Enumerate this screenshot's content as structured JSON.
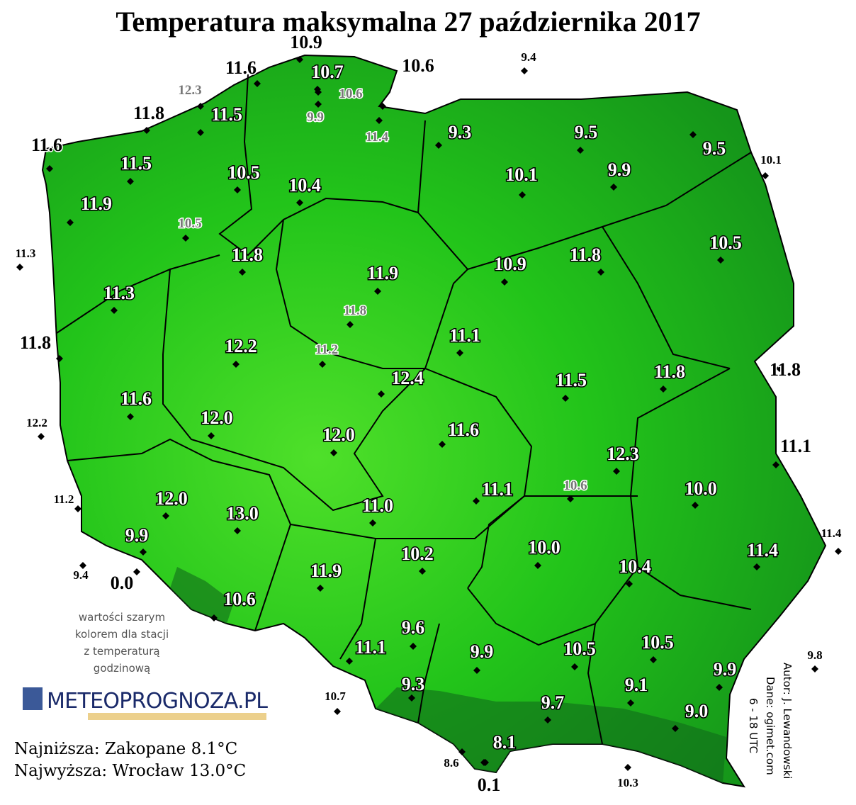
{
  "title": "Temperatura maksymalna 27 października 2017",
  "stations": [
    "10.9",
    "11.6",
    "10.6",
    "9.4",
    "12.3",
    "10.7",
    "10.6",
    "9.9",
    "11.4",
    "11.8",
    "11.5",
    "11.6",
    "11.5",
    "10.5",
    "10.4",
    "11.9",
    "9.3",
    "9.5",
    "9.5",
    "10.1",
    "10.1",
    "9.9",
    "10.5",
    "11.3",
    "11.8",
    "11.8",
    "10.9",
    "11.9",
    "10.5",
    "11.3",
    "11.8",
    "11.8",
    "11.1",
    "12.2",
    "11.2",
    "12.4",
    "11.5",
    "11.8",
    "11.8",
    "12.2",
    "11.6",
    "12.0",
    "12.0",
    "11.6",
    "11.1",
    "12.3",
    "10.6",
    "10.0",
    "11.2",
    "12.0",
    "11.1",
    "11.0",
    "13.0",
    "9.9",
    "11.4",
    "9.4",
    "0.0",
    "10.2",
    "10.0",
    "10.4",
    "11.4",
    "11.9",
    "10.6",
    "9.6",
    "11.1",
    "9.9",
    "10.5",
    "10.5",
    "9.8",
    "9.9",
    "10.7",
    "9.1",
    "9.3",
    "9.7",
    "9.0",
    "8.1",
    "8.6",
    "0.1",
    "10.3"
  ],
  "note": [
    "wartości szarym",
    "kolorem dla stacji",
    "z temperaturą",
    "godzinową"
  ],
  "logo": "METEOPROGNOZA.PL",
  "lowest": "Najniższa: Zakopane 8.1°C",
  "highest": "Najwyższa: Wrocław 13.0°C",
  "credits": [
    "Autor: J. Lewandowski",
    "Dane: ogimet.com",
    "6 - 18 UTC"
  ]
}
